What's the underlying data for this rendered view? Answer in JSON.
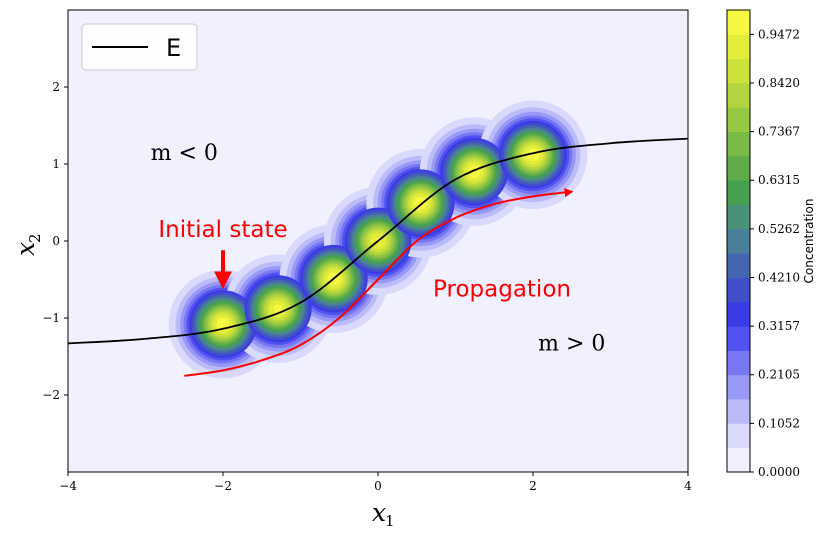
{
  "chart_data": {
    "type": "heatmap",
    "xlabel": "x",
    "xlabel_sub": "1",
    "ylabel": "x",
    "ylabel_sub": "2",
    "xlim": [
      -4,
      4
    ],
    "ylim": [
      -3,
      3
    ],
    "xticks": [
      -4,
      -2,
      0,
      2,
      4
    ],
    "xtick_labels": [
      "−4",
      "−2",
      "0",
      "2",
      "4"
    ],
    "yticks": [
      -2,
      -1,
      0,
      1,
      2
    ],
    "ytick_labels": [
      "−2",
      "−1",
      "0",
      "1",
      "2"
    ],
    "legend": {
      "position": "top-left",
      "entries": [
        "E"
      ]
    },
    "series": [
      {
        "name": "E",
        "color": "#000000",
        "x": [
          -4,
          -3,
          -2,
          -1,
          0,
          1,
          2,
          3,
          4
        ],
        "y": [
          -1.33,
          -1.27,
          -1.14,
          -0.8,
          0.0,
          0.8,
          1.14,
          1.27,
          1.33
        ]
      }
    ],
    "blobs": [
      {
        "x": -2.0,
        "y": -1.08,
        "peak": 1.0
      },
      {
        "x": -1.29,
        "y": -0.88,
        "peak": 0.98
      },
      {
        "x": -0.57,
        "y": -0.49,
        "peak": 1.0
      },
      {
        "x": 0.0,
        "y": 0.0,
        "peak": 0.97
      },
      {
        "x": 0.55,
        "y": 0.49,
        "peak": 1.0
      },
      {
        "x": 1.24,
        "y": 0.9,
        "peak": 1.0
      },
      {
        "x": 2.0,
        "y": 1.12,
        "peak": 1.0
      }
    ],
    "propagation_curve": {
      "color": "#ff0000",
      "x": [
        -2.5,
        -2.0,
        -1.5,
        -1.0,
        -0.5,
        0.0,
        0.5,
        1.0,
        1.5,
        2.0,
        2.5
      ],
      "y": [
        -1.75,
        -1.68,
        -1.55,
        -1.35,
        -1.0,
        -0.5,
        0.0,
        0.3,
        0.48,
        0.58,
        0.64
      ]
    },
    "annotations": {
      "m_neg": {
        "text": "m < 0",
        "x": -2.5,
        "y": 1.05
      },
      "m_pos": {
        "text": "m > 0",
        "x": 2.5,
        "y": -1.42
      },
      "initial": {
        "text": "Initial state",
        "x": -2.0,
        "y": 0.05,
        "color": "#ff0000"
      },
      "initial_arrow": {
        "x": -2.0,
        "y_from": -0.12,
        "y_to": -0.58
      },
      "propagation": {
        "text": "Propagation",
        "x": 1.6,
        "y": -0.72,
        "color": "#ff0000"
      }
    },
    "colorbar": {
      "label": "Concentration",
      "range": [
        0,
        1
      ],
      "tick_values": [
        0.0,
        0.1052,
        0.2105,
        0.3157,
        0.421,
        0.5262,
        0.6315,
        0.7367,
        0.842,
        0.9472
      ],
      "tick_labels": [
        "0.0000",
        "0.1052",
        "0.2105",
        "0.3157",
        "0.4210",
        "0.5262",
        "0.6315",
        "0.7367",
        "0.8420",
        "0.9472"
      ],
      "colors": [
        "#f0f0fe",
        "#d9d9fc",
        "#bbbbfa",
        "#9898f7",
        "#7777f3",
        "#5252f0",
        "#3c3ce6",
        "#4150c8",
        "#4466b0",
        "#4a7f99",
        "#4a9277",
        "#45a050",
        "#5fac49",
        "#7aba47",
        "#96c843",
        "#b2d43f",
        "#cde13b",
        "#e2ec3a",
        "#f6f740"
      ]
    },
    "background_color": "#f0f0fe"
  }
}
